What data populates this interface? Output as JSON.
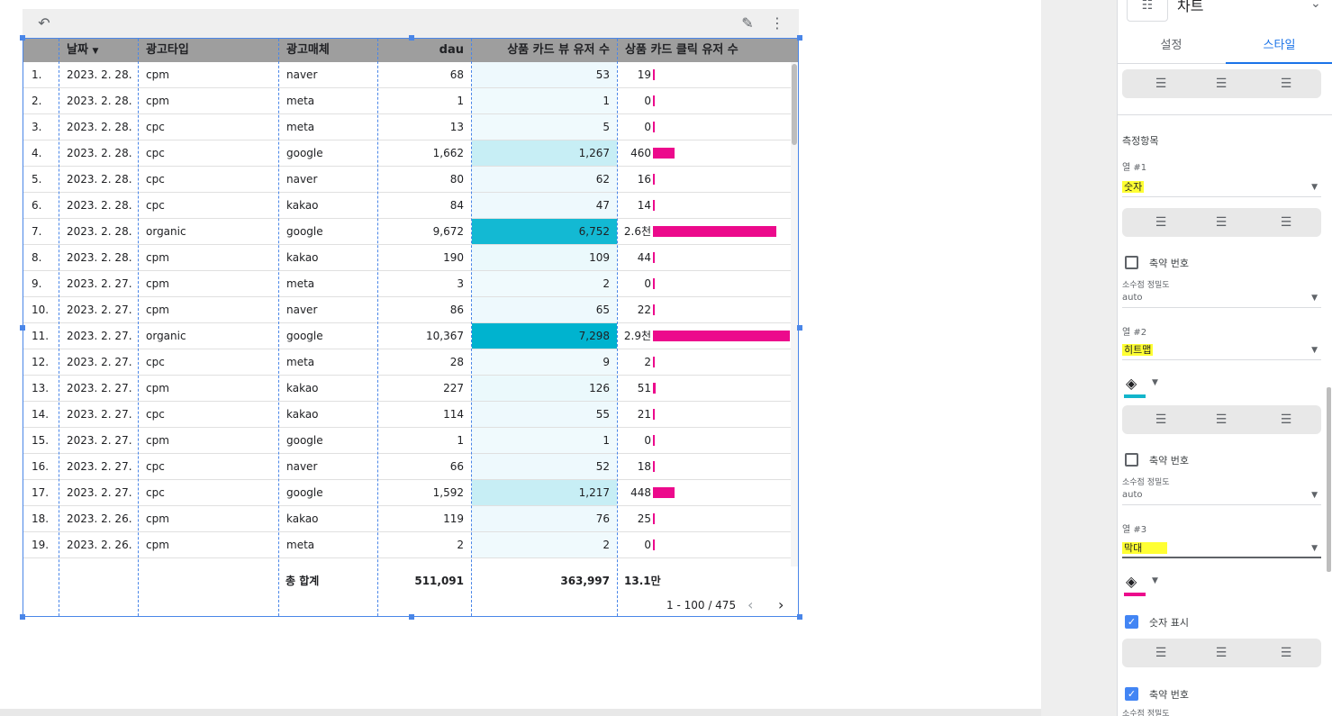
{
  "toolbar": {
    "undo_icon": "undo-icon",
    "edit_icon": "pencil-icon",
    "more_icon": "more-vert-icon"
  },
  "table": {
    "headers": [
      "날짜",
      "광고타입",
      "광고매체",
      "dau",
      "상품 카드 뷰 유저 수",
      "상품 카드 클릭 유저 수"
    ],
    "sort_indicator": "▼",
    "rows": [
      {
        "idx": "1.",
        "date": "2023. 2. 28.",
        "type": "cpm",
        "media": "naver",
        "dau": "68",
        "view": "53",
        "click": "19",
        "heat": 0.01,
        "bar": 0.007
      },
      {
        "idx": "2.",
        "date": "2023. 2. 28.",
        "type": "cpm",
        "media": "meta",
        "dau": "1",
        "view": "1",
        "click": "0",
        "heat": 0.0,
        "bar": 0.0
      },
      {
        "idx": "3.",
        "date": "2023. 2. 28.",
        "type": "cpc",
        "media": "meta",
        "dau": "13",
        "view": "5",
        "click": "0",
        "heat": 0.0,
        "bar": 0.0
      },
      {
        "idx": "4.",
        "date": "2023. 2. 28.",
        "type": "cpc",
        "media": "google",
        "dau": "1,662",
        "view": "1,267",
        "click": "460",
        "heat": 0.17,
        "bar": 0.16
      },
      {
        "idx": "5.",
        "date": "2023. 2. 28.",
        "type": "cpc",
        "media": "naver",
        "dau": "80",
        "view": "62",
        "click": "16",
        "heat": 0.01,
        "bar": 0.006
      },
      {
        "idx": "6.",
        "date": "2023. 2. 28.",
        "type": "cpc",
        "media": "kakao",
        "dau": "84",
        "view": "47",
        "click": "14",
        "heat": 0.01,
        "bar": 0.005
      },
      {
        "idx": "7.",
        "date": "2023. 2. 28.",
        "type": "organic",
        "media": "google",
        "dau": "9,672",
        "view": "6,752",
        "click": "2.6천",
        "heat": 0.92,
        "bar": 0.9
      },
      {
        "idx": "8.",
        "date": "2023. 2. 28.",
        "type": "cpm",
        "media": "kakao",
        "dau": "190",
        "view": "109",
        "click": "44",
        "heat": 0.02,
        "bar": 0.015
      },
      {
        "idx": "9.",
        "date": "2023. 2. 27.",
        "type": "cpm",
        "media": "meta",
        "dau": "3",
        "view": "2",
        "click": "0",
        "heat": 0.0,
        "bar": 0.0
      },
      {
        "idx": "10.",
        "date": "2023. 2. 27.",
        "type": "cpm",
        "media": "naver",
        "dau": "86",
        "view": "65",
        "click": "22",
        "heat": 0.01,
        "bar": 0.008
      },
      {
        "idx": "11.",
        "date": "2023. 2. 27.",
        "type": "organic",
        "media": "google",
        "dau": "10,367",
        "view": "7,298",
        "click": "2.9천",
        "heat": 1.0,
        "bar": 1.0
      },
      {
        "idx": "12.",
        "date": "2023. 2. 27.",
        "type": "cpc",
        "media": "meta",
        "dau": "28",
        "view": "9",
        "click": "2",
        "heat": 0.0,
        "bar": 0.001
      },
      {
        "idx": "13.",
        "date": "2023. 2. 27.",
        "type": "cpm",
        "media": "kakao",
        "dau": "227",
        "view": "126",
        "click": "51",
        "heat": 0.02,
        "bar": 0.018
      },
      {
        "idx": "14.",
        "date": "2023. 2. 27.",
        "type": "cpc",
        "media": "kakao",
        "dau": "114",
        "view": "55",
        "click": "21",
        "heat": 0.01,
        "bar": 0.007
      },
      {
        "idx": "15.",
        "date": "2023. 2. 27.",
        "type": "cpm",
        "media": "google",
        "dau": "1",
        "view": "1",
        "click": "0",
        "heat": 0.0,
        "bar": 0.0
      },
      {
        "idx": "16.",
        "date": "2023. 2. 27.",
        "type": "cpc",
        "media": "naver",
        "dau": "66",
        "view": "52",
        "click": "18",
        "heat": 0.01,
        "bar": 0.006
      },
      {
        "idx": "17.",
        "date": "2023. 2. 27.",
        "type": "cpc",
        "media": "google",
        "dau": "1,592",
        "view": "1,217",
        "click": "448",
        "heat": 0.17,
        "bar": 0.155
      },
      {
        "idx": "18.",
        "date": "2023. 2. 26.",
        "type": "cpm",
        "media": "kakao",
        "dau": "119",
        "view": "76",
        "click": "25",
        "heat": 0.01,
        "bar": 0.009
      },
      {
        "idx": "19.",
        "date": "2023. 2. 26.",
        "type": "cpm",
        "media": "meta",
        "dau": "2",
        "view": "2",
        "click": "0",
        "heat": 0.0,
        "bar": 0.0
      }
    ],
    "total": {
      "label": "총 합계",
      "dau": "511,091",
      "view": "363,997",
      "click": "13.1만"
    },
    "pagination": {
      "range": "1 - 100 / 475",
      "prev_icon": "chevron-left-icon",
      "next_icon": "chevron-right-icon"
    },
    "colors": {
      "header_bg": "#9e9e9e",
      "heat_max": "#00b3cf",
      "heat_min": "#f0fafd",
      "bar": "#ec0a8c",
      "selection": "#4a86e8"
    }
  },
  "panel": {
    "title": "차트",
    "title_icon": "table-chart-icon",
    "tabs": [
      {
        "label": "설정",
        "active": false
      },
      {
        "label": "스타일",
        "active": true
      }
    ],
    "metrics_label": "측정항목",
    "col1": {
      "label": "열 #1",
      "value": "숫자",
      "compact_label": "축약 번호",
      "compact_checked": false,
      "precision_label": "소수점 정밀도",
      "precision_value": "auto"
    },
    "col2": {
      "label": "열 #2",
      "value": "히트맵",
      "color": "#12b5cb",
      "compact_label": "축약 번호",
      "compact_checked": false,
      "precision_label": "소수점 정밀도",
      "precision_value": "auto"
    },
    "col3": {
      "label": "열 #3",
      "value": "막대",
      "color": "#ec0a8c",
      "show_number_label": "숫자 표시",
      "show_number_checked": true,
      "compact_label": "축약 번호",
      "compact_checked": true,
      "precision_label": "소수점 정밀도"
    }
  }
}
